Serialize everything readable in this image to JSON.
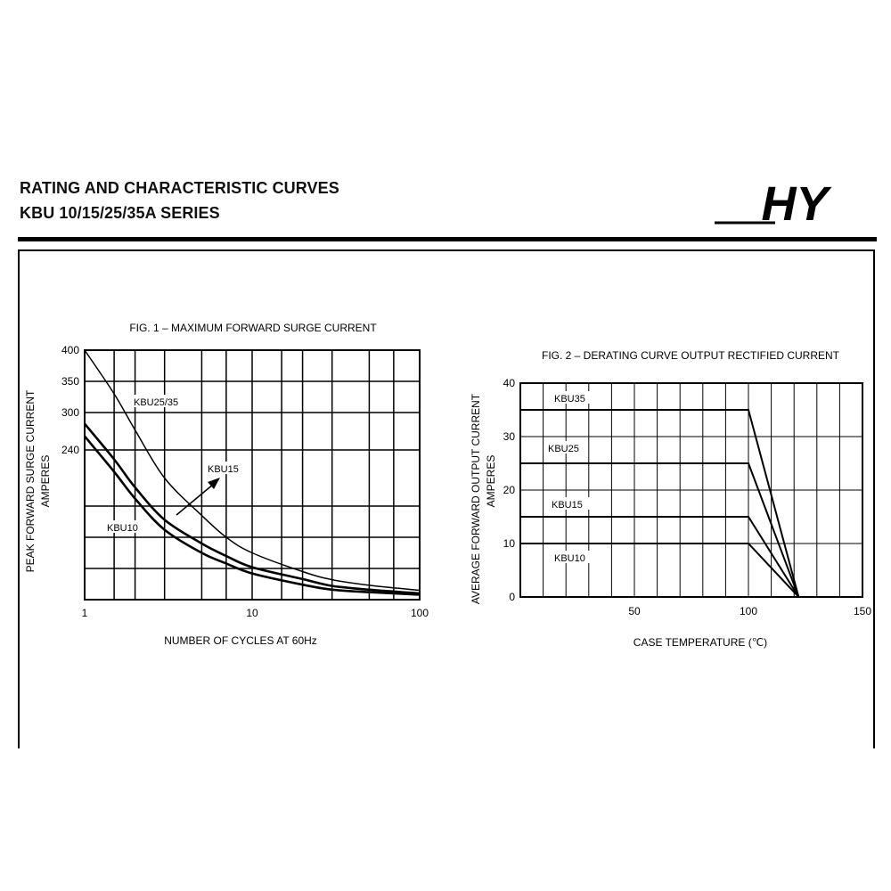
{
  "header": {
    "title_line1": "RATING AND CHARACTERISTIC CURVES",
    "title_line2": "KBU 10/15/25/35A  SERIES",
    "logo_text": "HY"
  },
  "chart_data": [
    {
      "type": "line",
      "title": "FIG. 1 – MAXIMUM FORWARD SURGE CURRENT",
      "xlabel": "NUMBER OF CYCLES AT 60Hz",
      "ylabel": "PEAK FORWARD SURGE CURRENT",
      "ylabel_unit": "AMPERES",
      "x_scale": "log",
      "xlim": [
        1,
        100
      ],
      "ylim": [
        0,
        400
      ],
      "x_ticks": [
        {
          "value": 1,
          "label": "1"
        },
        {
          "value": 10,
          "label": "10"
        },
        {
          "value": 100,
          "label": "100"
        }
      ],
      "y_ticks": [
        {
          "value": 400,
          "label": "400"
        },
        {
          "value": 350,
          "label": "350"
        },
        {
          "value": 300,
          "label": "300"
        },
        {
          "value": 240,
          "label": "240"
        }
      ],
      "grid": true,
      "series": [
        {
          "name": "KBU25/35",
          "x": [
            1,
            1.5,
            2,
            3,
            5,
            7,
            10,
            20,
            30,
            50,
            100
          ],
          "y": [
            400,
            330,
            272,
            195,
            135,
            100,
            75,
            45,
            32,
            23,
            15
          ]
        },
        {
          "name": "KBU15",
          "x": [
            1,
            1.5,
            2,
            3,
            5,
            7,
            10,
            20,
            30,
            50,
            100
          ],
          "y": [
            282,
            225,
            180,
            128,
            90,
            70,
            52,
            33,
            22,
            16,
            10
          ]
        },
        {
          "name": "KBU10",
          "x": [
            1,
            1.5,
            2,
            3,
            5,
            7,
            10,
            20,
            30,
            50,
            100
          ],
          "y": [
            262,
            205,
            162,
            112,
            75,
            58,
            42,
            24,
            16,
            12,
            8
          ]
        }
      ]
    },
    {
      "type": "line",
      "title": "FIG. 2 – DERATING CURVE OUTPUT RECTIFIED CURRENT",
      "xlabel": "CASE TEMPERATURE (℃)",
      "ylabel": "AVERAGE FORWARD OUTPUT  CURRENT",
      "ylabel_unit": "AMPERES",
      "xlim": [
        0,
        150
      ],
      "ylim": [
        0,
        40
      ],
      "x_ticks": [
        {
          "value": 50,
          "label": "50"
        },
        {
          "value": 100,
          "label": "100"
        },
        {
          "value": 150,
          "label": "150"
        }
      ],
      "y_ticks": [
        {
          "value": 40,
          "label": "40"
        },
        {
          "value": 30,
          "label": "30"
        },
        {
          "value": 20,
          "label": "20"
        },
        {
          "value": 10,
          "label": "10"
        },
        {
          "value": 0,
          "label": "0"
        }
      ],
      "grid": true,
      "series": [
        {
          "name": "KBU35",
          "x": [
            0,
            100,
            122
          ],
          "y": [
            35,
            35,
            0
          ]
        },
        {
          "name": "KBU25",
          "x": [
            0,
            100,
            122
          ],
          "y": [
            25,
            25,
            0
          ]
        },
        {
          "name": "KBU15",
          "x": [
            0,
            100,
            122
          ],
          "y": [
            15,
            15,
            0
          ]
        },
        {
          "name": "KBU10",
          "x": [
            0,
            100,
            122
          ],
          "y": [
            10,
            10,
            0
          ]
        }
      ]
    }
  ]
}
